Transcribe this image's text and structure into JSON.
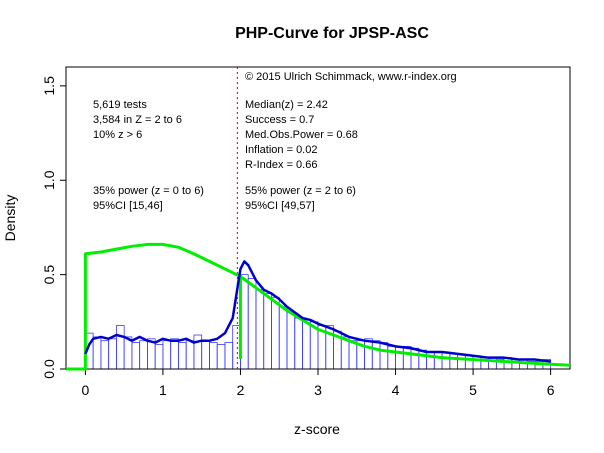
{
  "chart_data": {
    "type": "bar",
    "title": "PHP-Curve for JPSP-ASC",
    "xlabel": "z-score",
    "ylabel": "Density",
    "xlim": [
      -0.25,
      6.25
    ],
    "ylim": [
      0,
      1.6
    ],
    "x_ticks": [
      "0",
      "1",
      "2",
      "3",
      "4",
      "5",
      "6"
    ],
    "y_ticks": [
      "0.0",
      "0.5",
      "1.0",
      "1.5"
    ],
    "bin_width": 0.1,
    "bin_starts": [
      0.0,
      0.1,
      0.2,
      0.3,
      0.4,
      0.5,
      0.6,
      0.7,
      0.8,
      0.9,
      1.0,
      1.1,
      1.2,
      1.3,
      1.4,
      1.5,
      1.6,
      1.7,
      1.8,
      1.9,
      2.0,
      2.1,
      2.2,
      2.3,
      2.4,
      2.5,
      2.6,
      2.7,
      2.8,
      2.9,
      3.0,
      3.1,
      3.2,
      3.3,
      3.4,
      3.5,
      3.6,
      3.7,
      3.8,
      3.9,
      4.0,
      4.1,
      4.2,
      4.3,
      4.4,
      4.5,
      4.6,
      4.7,
      4.8,
      4.9,
      5.0,
      5.1,
      5.2,
      5.3,
      5.4,
      5.5,
      5.6,
      5.7,
      5.8,
      5.9
    ],
    "bar_values": [
      0.19,
      0.17,
      0.15,
      0.16,
      0.23,
      0.17,
      0.14,
      0.15,
      0.16,
      0.13,
      0.15,
      0.16,
      0.14,
      0.15,
      0.18,
      0.15,
      0.14,
      0.13,
      0.14,
      0.23,
      0.5,
      0.48,
      0.42,
      0.4,
      0.38,
      0.33,
      0.3,
      0.27,
      0.26,
      0.25,
      0.23,
      0.23,
      0.2,
      0.17,
      0.15,
      0.15,
      0.16,
      0.15,
      0.14,
      0.12,
      0.12,
      0.12,
      0.11,
      0.1,
      0.09,
      0.09,
      0.09,
      0.08,
      0.08,
      0.07,
      0.07,
      0.06,
      0.06,
      0.05,
      0.06,
      0.05,
      0.05,
      0.04,
      0.04,
      0.05
    ],
    "density_line": {
      "x": [
        0.0,
        0.05,
        0.1,
        0.2,
        0.3,
        0.4,
        0.5,
        0.6,
        0.7,
        0.8,
        0.9,
        1.0,
        1.1,
        1.2,
        1.3,
        1.4,
        1.5,
        1.6,
        1.7,
        1.8,
        1.9,
        1.95,
        2.0,
        2.05,
        2.1,
        2.2,
        2.3,
        2.4,
        2.5,
        2.6,
        2.7,
        2.8,
        2.9,
        3.0,
        3.2,
        3.4,
        3.6,
        3.8,
        4.0,
        4.2,
        4.4,
        4.6,
        4.8,
        5.0,
        5.2,
        5.4,
        5.6,
        5.8,
        6.0
      ],
      "y": [
        0.08,
        0.13,
        0.16,
        0.17,
        0.16,
        0.18,
        0.17,
        0.15,
        0.17,
        0.15,
        0.14,
        0.16,
        0.15,
        0.15,
        0.16,
        0.14,
        0.15,
        0.15,
        0.16,
        0.19,
        0.27,
        0.4,
        0.53,
        0.57,
        0.55,
        0.47,
        0.42,
        0.4,
        0.37,
        0.33,
        0.3,
        0.27,
        0.26,
        0.24,
        0.21,
        0.17,
        0.15,
        0.14,
        0.12,
        0.11,
        0.09,
        0.09,
        0.08,
        0.07,
        0.06,
        0.06,
        0.05,
        0.05,
        0.04
      ]
    },
    "fitted_curve": {
      "x": [
        -0.25,
        0.0,
        0.0,
        0.1,
        0.2,
        0.4,
        0.6,
        0.8,
        1.0,
        1.2,
        1.4,
        1.6,
        1.8,
        2.0,
        2.2,
        2.4,
        2.6,
        2.8,
        3.0,
        3.2,
        3.4,
        3.6,
        3.8,
        4.0,
        4.2,
        4.4,
        4.6,
        4.8,
        5.0,
        5.2,
        5.4,
        5.6,
        5.8,
        6.0,
        6.25
      ],
      "y": [
        0.0,
        0.0,
        0.61,
        0.615,
        0.62,
        0.635,
        0.65,
        0.66,
        0.66,
        0.645,
        0.61,
        0.57,
        0.53,
        0.49,
        0.43,
        0.37,
        0.31,
        0.26,
        0.21,
        0.18,
        0.15,
        0.12,
        0.1,
        0.09,
        0.08,
        0.07,
        0.06,
        0.055,
        0.05,
        0.045,
        0.04,
        0.035,
        0.03,
        0.025,
        0.02
      ]
    },
    "green_drop": {
      "x": 2.0,
      "y_top": 0.5
    },
    "cutoff_line": {
      "x": 1.96,
      "style": "dotted",
      "color": "#cc0000"
    },
    "colors": {
      "bars": "#3a3aff",
      "density": "#0000cc",
      "fit": "#00ee00",
      "cutoff": "#cc0000"
    },
    "annotations": {
      "copyright": "© 2015 Ulrich Schimmack, www.r-index.org",
      "left_block": [
        "5,619 tests",
        "3,584 in Z = 2 to 6",
        "10% z > 6"
      ],
      "right_block": [
        "Median(z) = 2.42",
        "Success = 0.7",
        "Med.Obs.Power = 0.68",
        "Inflation = 0.02",
        "R-Index = 0.66"
      ],
      "left_power": [
        "35% power (z = 0 to 6)",
        "95%CI [15,46]"
      ],
      "right_power": [
        "55% power (z = 2 to 6)",
        "95%CI [49,57]"
      ]
    }
  }
}
